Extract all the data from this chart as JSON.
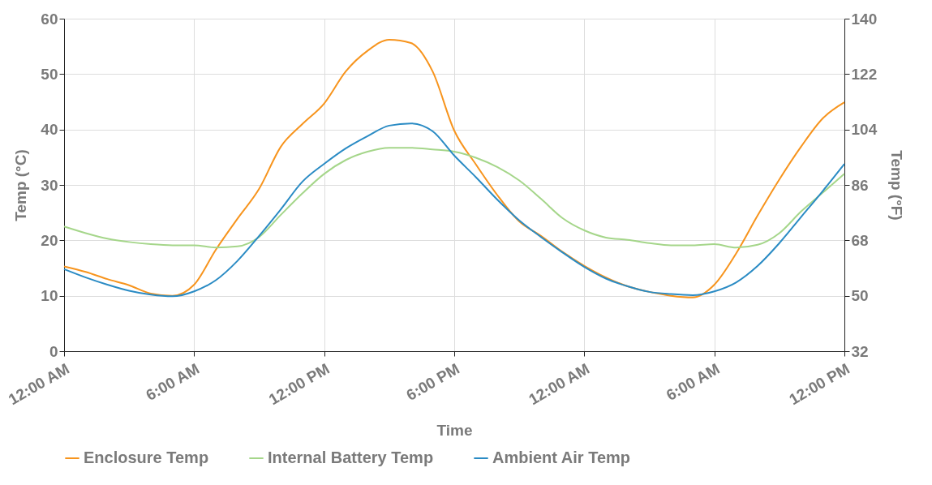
{
  "chart_data": {
    "type": "line",
    "xlabel": "Time",
    "ylabel": "Temp (°C)",
    "y2label": "Temp (°F)",
    "categories": [
      "12:00 AM",
      null,
      null,
      null,
      null,
      null,
      "6:00 AM",
      null,
      null,
      null,
      null,
      null,
      "12:00 PM",
      null,
      null,
      null,
      null,
      null,
      "6:00 PM",
      null,
      null,
      null,
      null,
      null,
      "12:00 AM",
      null,
      null,
      null,
      null,
      null,
      "6:00 AM",
      null,
      null,
      null,
      null,
      null,
      "12:00 PM"
    ],
    "ylim": [
      0,
      60
    ],
    "yticks": [
      0,
      10,
      20,
      30,
      40,
      50,
      60
    ],
    "y2lim": [
      32,
      140
    ],
    "y2ticks": [
      32,
      50,
      68,
      86,
      104,
      122,
      140
    ],
    "grid": true,
    "legend": "bottom",
    "marker": "none",
    "line_style": "solid",
    "series": [
      {
        "name": "Enclosure Temp",
        "color": "#f7941d",
        "values": [
          15.3,
          14.3,
          13,
          11.9,
          10.4,
          10,
          12,
          18.3,
          23.9,
          29.3,
          36.9,
          41,
          44.7,
          50.5,
          54.2,
          56.2,
          55.6,
          50.5,
          39.8,
          33.7,
          28.1,
          23.4,
          20.8,
          17.9,
          15.4,
          13.3,
          11.7,
          10.7,
          10,
          9.7,
          12,
          17.6,
          24.5,
          31,
          36.9,
          42,
          44.9
        ]
      },
      {
        "name": "Internal Battery Temp",
        "color": "#a5d68a",
        "values": [
          22.5,
          21.3,
          20.3,
          19.7,
          19.3,
          19.1,
          19.1,
          18.7,
          18.9,
          20.6,
          24.6,
          28.5,
          32,
          34.5,
          36,
          36.7,
          36.7,
          36.4,
          36,
          34.9,
          33.2,
          30.8,
          27.5,
          24,
          21.8,
          20.5,
          20.1,
          19.5,
          19.1,
          19.1,
          19.3,
          18.7,
          19.2,
          21.3,
          25.2,
          28.6,
          32
        ]
      },
      {
        "name": "Ambient Air Temp",
        "color": "#2a8bc4",
        "values": [
          14.8,
          13.3,
          12,
          10.9,
          10.2,
          9.9,
          10.8,
          12.8,
          16.3,
          20.8,
          25.6,
          30.6,
          33.8,
          36.6,
          38.8,
          40.7,
          41.1,
          39.7,
          35.3,
          31.4,
          27.3,
          23.6,
          20.6,
          17.8,
          15.2,
          13.1,
          11.7,
          10.7,
          10.3,
          10.1,
          10.8,
          12.4,
          15.4,
          19.5,
          24.2,
          28.9,
          33.8
        ]
      }
    ]
  }
}
